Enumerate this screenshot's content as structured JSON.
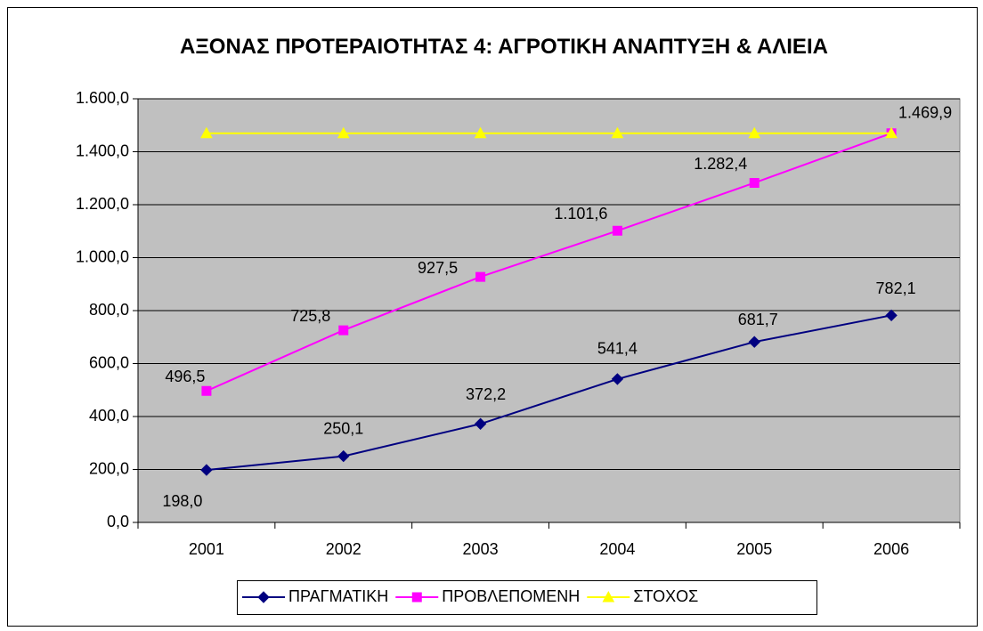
{
  "chart_data": {
    "type": "line",
    "title": "ΑΞΟΝΑΣ ΠΡΟΤΕΡΑΙΟΤΗΤΑΣ 4: ΑΓΡΟΤΙΚΗ ΑΝΑΠΤΥΞΗ & ΑΛΙΕΙΑ",
    "categories": [
      "2001",
      "2002",
      "2003",
      "2004",
      "2005",
      "2006"
    ],
    "series": [
      {
        "name": "ΠΡΑΓΜΑΤΙΚΗ",
        "color": "#000080",
        "marker": "diamond",
        "values": [
          198.0,
          250.1,
          372.2,
          541.4,
          681.7,
          782.1
        ],
        "value_labels": [
          "198,0",
          "250,1",
          "372,2",
          "541,4",
          "681,7",
          "782,1"
        ]
      },
      {
        "name": "ΠΡΟΒΛΕΠΟΜΕΝΗ",
        "color": "#ff00ff",
        "marker": "square",
        "values": [
          496.5,
          725.8,
          927.5,
          1101.6,
          1282.4,
          1469.9
        ],
        "value_labels": [
          "496,5",
          "725,8",
          "927,5",
          "1.101,6",
          "1.282,4",
          "1.469,9"
        ]
      },
      {
        "name": "ΣΤΟΧΟΣ",
        "color": "#ffff00",
        "marker": "triangle",
        "values": [
          1469.9,
          1469.9,
          1469.9,
          1469.9,
          1469.9,
          1469.9
        ]
      }
    ],
    "ylim": [
      0,
      1600
    ],
    "yticks": [
      {
        "value": 0,
        "label": "0,0"
      },
      {
        "value": 200,
        "label": "200,0"
      },
      {
        "value": 400,
        "label": "400,0"
      },
      {
        "value": 600,
        "label": "600,0"
      },
      {
        "value": 800,
        "label": "800,0"
      },
      {
        "value": 1000,
        "label": "1.000,0"
      },
      {
        "value": 1200,
        "label": "1.200,0"
      },
      {
        "value": 1400,
        "label": "1.400,0"
      },
      {
        "value": 1600,
        "label": "1.600,0"
      }
    ],
    "grid": true,
    "plot_background": "#c0c0c0",
    "legend": "bottom"
  }
}
